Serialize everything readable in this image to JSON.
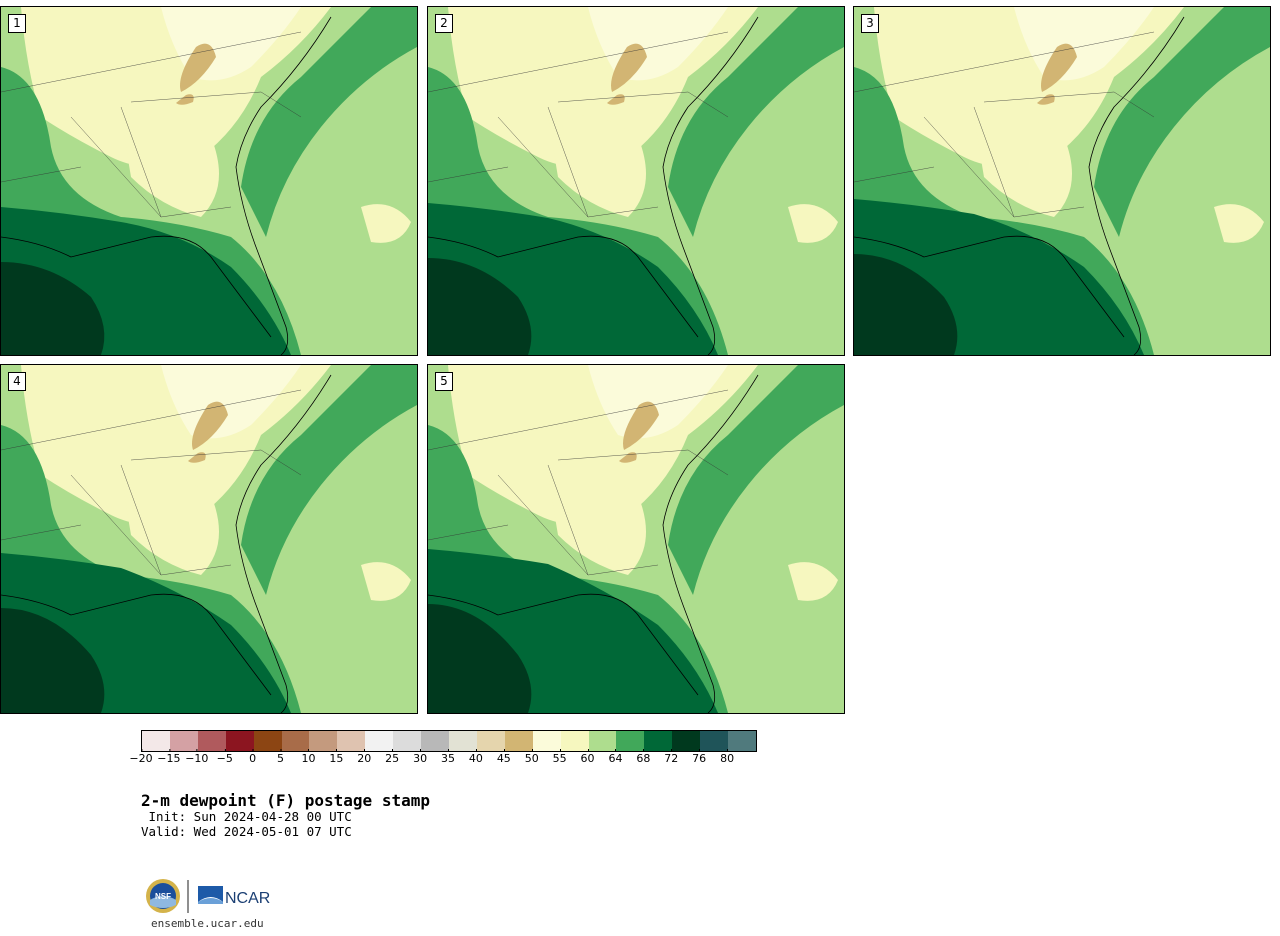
{
  "panels": [
    {
      "label": "1"
    },
    {
      "label": "2"
    },
    {
      "label": "3"
    },
    {
      "label": "4"
    },
    {
      "label": "5"
    }
  ],
  "colorbar": {
    "colors": [
      "#f3e8e8",
      "#d4a1a4",
      "#b05a5d",
      "#8c1520",
      "#8c4513",
      "#a86c49",
      "#c49a7e",
      "#dfc3b0",
      "#f2f2f2",
      "#dcdcdc",
      "#b8b8b8",
      "#e2e2d4",
      "#e5d5ad",
      "#d2b573",
      "#fbfbda",
      "#f6f7bf",
      "#aedd8e",
      "#41a85a",
      "#006837",
      "#00391e",
      "#1f5459",
      "#507a7d"
    ],
    "ticks": [
      "−20",
      "−15",
      "−10",
      "−5",
      "0",
      "5",
      "10",
      "15",
      "20",
      "25",
      "30",
      "35",
      "40",
      "45",
      "50",
      "55",
      "60",
      "64",
      "68",
      "72",
      "76",
      "80"
    ]
  },
  "title": "2-m dewpoint (F) postage stamp",
  "init": " Init: Sun 2024-04-28 00 UTC",
  "valid": "Valid: Wed 2024-05-01 07 UTC",
  "logos": {
    "nsf": "NSF",
    "ncar": "NCAR"
  },
  "footer_url": "ensemble.ucar.edu"
}
